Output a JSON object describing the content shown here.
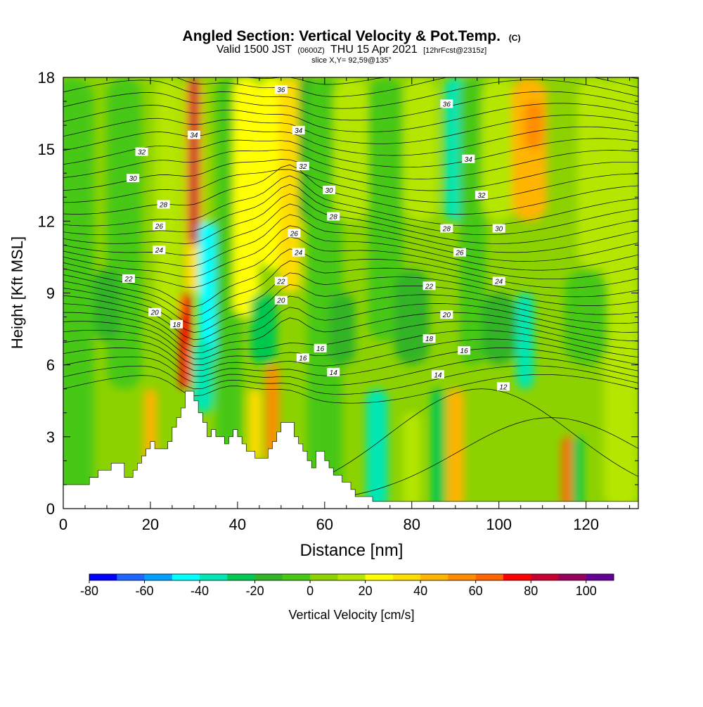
{
  "chart_data": {
    "type": "heatmap",
    "title": "Angled Section: Vertical Velocity & Pot.Temp.",
    "title_suffix": "(C)",
    "subtitle_main": "Valid 1500 JST",
    "subtitle_zulu": "(0600Z)",
    "subtitle_date": "THU 15 Apr 2021",
    "subtitle_fcst": "[12hrFcst@2315z]",
    "subtitle_slice": "slice X,Y= 92,59@135°",
    "xlabel": "Distance [nm]",
    "ylabel": "Height [Kft MSL]",
    "xlim": [
      0,
      132
    ],
    "ylim": [
      0,
      18
    ],
    "xticks": [
      0,
      20,
      40,
      60,
      80,
      100,
      120
    ],
    "yticks": [
      0,
      3,
      6,
      9,
      12,
      15,
      18
    ],
    "colorbar": {
      "label": "Vertical Velocity [cm/s]",
      "tick_labels": [
        "-80",
        "-60",
        "-40",
        "-20",
        "0",
        "20",
        "40",
        "60",
        "80",
        "100"
      ],
      "levels": [
        -80,
        -70,
        -60,
        -50,
        -40,
        -30,
        -20,
        -10,
        0,
        10,
        20,
        30,
        40,
        50,
        60,
        70,
        80,
        90,
        100,
        110
      ],
      "colors": [
        "#0000ff",
        "#1e64ff",
        "#00a0ff",
        "#00ffff",
        "#00e6b4",
        "#00c850",
        "#32b428",
        "#46c814",
        "#8cd200",
        "#b4e600",
        "#ffff00",
        "#ffdc00",
        "#ffb400",
        "#ff8c00",
        "#ff6400",
        "#ff0000",
        "#c80032",
        "#96005a",
        "#640096"
      ]
    },
    "theta_contour_labels": [
      {
        "x": 62,
        "y": 5.7,
        "v": "14"
      },
      {
        "x": 86,
        "y": 5.6,
        "v": "14"
      },
      {
        "x": 55,
        "y": 6.3,
        "v": "16"
      },
      {
        "x": 59,
        "y": 6.7,
        "v": "16"
      },
      {
        "x": 92,
        "y": 6.6,
        "v": "16"
      },
      {
        "x": 101,
        "y": 5.1,
        "v": "12"
      },
      {
        "x": 26,
        "y": 7.7,
        "v": "18"
      },
      {
        "x": 84,
        "y": 7.1,
        "v": "18"
      },
      {
        "x": 21,
        "y": 8.2,
        "v": "20"
      },
      {
        "x": 50,
        "y": 8.7,
        "v": "20"
      },
      {
        "x": 88,
        "y": 8.1,
        "v": "20"
      },
      {
        "x": 15,
        "y": 9.6,
        "v": "22"
      },
      {
        "x": 50,
        "y": 9.5,
        "v": "22"
      },
      {
        "x": 84,
        "y": 9.3,
        "v": "22"
      },
      {
        "x": 22,
        "y": 10.8,
        "v": "24"
      },
      {
        "x": 54,
        "y": 10.7,
        "v": "24"
      },
      {
        "x": 100,
        "y": 9.5,
        "v": "24"
      },
      {
        "x": 22,
        "y": 11.8,
        "v": "26"
      },
      {
        "x": 53,
        "y": 11.5,
        "v": "26"
      },
      {
        "x": 91,
        "y": 10.7,
        "v": "26"
      },
      {
        "x": 23,
        "y": 12.7,
        "v": "28"
      },
      {
        "x": 62,
        "y": 12.2,
        "v": "28"
      },
      {
        "x": 88,
        "y": 11.7,
        "v": "28"
      },
      {
        "x": 16,
        "y": 13.8,
        "v": "30"
      },
      {
        "x": 61,
        "y": 13.3,
        "v": "30"
      },
      {
        "x": 100,
        "y": 11.7,
        "v": "30"
      },
      {
        "x": 18,
        "y": 14.9,
        "v": "32"
      },
      {
        "x": 55,
        "y": 14.3,
        "v": "32"
      },
      {
        "x": 96,
        "y": 13.1,
        "v": "32"
      },
      {
        "x": 30,
        "y": 15.6,
        "v": "34"
      },
      {
        "x": 54,
        "y": 15.8,
        "v": "34"
      },
      {
        "x": 93,
        "y": 14.6,
        "v": "34"
      },
      {
        "x": 50,
        "y": 17.5,
        "v": "36"
      },
      {
        "x": 88,
        "y": 16.9,
        "v": "36"
      }
    ]
  }
}
